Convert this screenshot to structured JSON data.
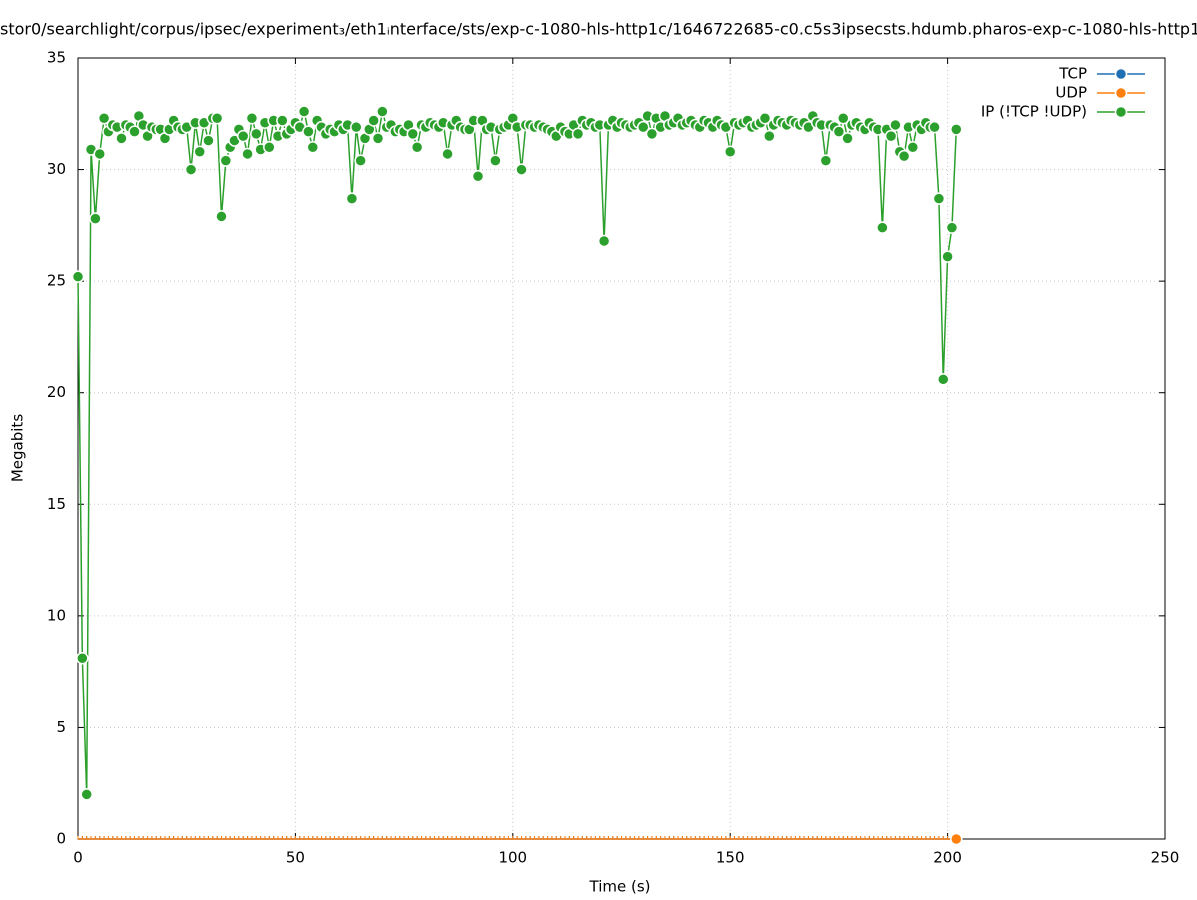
{
  "chart_data": {
    "type": "line",
    "title": "stor0/searchlight/corpus/ipsec/experiment₃/eth1ᵢnterface/sts/exp-c-1080-hls-http1c/1646722685-c0.c5s3ipsecsts.hdumb.pharos-exp-c-1080-hls-http1",
    "x_label": "Time (s)",
    "y_label": "Megabits",
    "xlim": [
      0,
      250
    ],
    "xticks": [
      0,
      50,
      100,
      150,
      200,
      250
    ],
    "ylim": [
      0,
      35
    ],
    "yticks": [
      0,
      5,
      10,
      15,
      20,
      25,
      30,
      35
    ],
    "grid": true,
    "legend": "top-right",
    "x": [
      0,
      1,
      2,
      3,
      4,
      5,
      6,
      7,
      8,
      9,
      10,
      11,
      12,
      13,
      14,
      15,
      16,
      17,
      18,
      19,
      20,
      21,
      22,
      23,
      24,
      25,
      26,
      27,
      28,
      29,
      30,
      31,
      32,
      33,
      34,
      35,
      36,
      37,
      38,
      39,
      40,
      41,
      42,
      43,
      44,
      45,
      46,
      47,
      48,
      49,
      50,
      51,
      52,
      53,
      54,
      55,
      56,
      57,
      58,
      59,
      60,
      61,
      62,
      63,
      64,
      65,
      66,
      67,
      68,
      69,
      70,
      71,
      72,
      73,
      74,
      75,
      76,
      77,
      78,
      79,
      80,
      81,
      82,
      83,
      84,
      85,
      86,
      87,
      88,
      89,
      90,
      91,
      92,
      93,
      94,
      95,
      96,
      97,
      98,
      99,
      100,
      101,
      102,
      103,
      104,
      105,
      106,
      107,
      108,
      109,
      110,
      111,
      112,
      113,
      114,
      115,
      116,
      117,
      118,
      119,
      120,
      121,
      122,
      123,
      124,
      125,
      126,
      127,
      128,
      129,
      130,
      131,
      132,
      133,
      134,
      135,
      136,
      137,
      138,
      139,
      140,
      141,
      142,
      143,
      144,
      145,
      146,
      147,
      148,
      149,
      150,
      151,
      152,
      153,
      154,
      155,
      156,
      157,
      158,
      159,
      160,
      161,
      162,
      163,
      164,
      165,
      166,
      167,
      168,
      169,
      170,
      171,
      172,
      173,
      174,
      175,
      176,
      177,
      178,
      179,
      180,
      181,
      182,
      183,
      184,
      185,
      186,
      187,
      188,
      189,
      190,
      191,
      192,
      193,
      194,
      195,
      196,
      197,
      198,
      199,
      200,
      201,
      202
    ],
    "series": [
      {
        "name": "TCP",
        "color": "#1f6fb4",
        "values": [
          0,
          0,
          0,
          0,
          0,
          0,
          0,
          0,
          0,
          0,
          0,
          0,
          0,
          0,
          0,
          0,
          0,
          0,
          0,
          0,
          0,
          0,
          0,
          0,
          0,
          0,
          0,
          0,
          0,
          0,
          0,
          0,
          0,
          0,
          0,
          0,
          0,
          0,
          0,
          0,
          0,
          0,
          0,
          0,
          0,
          0,
          0,
          0,
          0,
          0,
          0,
          0,
          0,
          0,
          0,
          0,
          0,
          0,
          0,
          0,
          0,
          0,
          0,
          0,
          0,
          0,
          0,
          0,
          0,
          0,
          0,
          0,
          0,
          0,
          0,
          0,
          0,
          0,
          0,
          0,
          0,
          0,
          0,
          0,
          0,
          0,
          0,
          0,
          0,
          0,
          0,
          0,
          0,
          0,
          0,
          0,
          0,
          0,
          0,
          0,
          0,
          0,
          0,
          0,
          0,
          0,
          0,
          0,
          0,
          0,
          0,
          0,
          0,
          0,
          0,
          0,
          0,
          0,
          0,
          0,
          0,
          0,
          0,
          0,
          0,
          0,
          0,
          0,
          0,
          0,
          0,
          0,
          0,
          0,
          0,
          0,
          0,
          0,
          0,
          0,
          0,
          0,
          0,
          0,
          0,
          0,
          0,
          0,
          0,
          0,
          0,
          0,
          0,
          0,
          0,
          0,
          0,
          0,
          0,
          0,
          0,
          0,
          0,
          0,
          0,
          0,
          0,
          0,
          0,
          0,
          0,
          0,
          0,
          0,
          0,
          0,
          0,
          0,
          0,
          0,
          0,
          0,
          0,
          0,
          0,
          0,
          0,
          0,
          0,
          0,
          0,
          0,
          0,
          0,
          0,
          0,
          0,
          0,
          0,
          0,
          0,
          0,
          0
        ]
      },
      {
        "name": "UDP",
        "color": "#ff7f0e",
        "values": [
          0,
          0,
          0,
          0,
          0,
          0,
          0,
          0,
          0,
          0,
          0,
          0,
          0,
          0,
          0,
          0,
          0,
          0,
          0,
          0,
          0,
          0,
          0,
          0,
          0,
          0,
          0,
          0,
          0,
          0,
          0,
          0,
          0,
          0,
          0,
          0,
          0,
          0,
          0,
          0,
          0,
          0,
          0,
          0,
          0,
          0,
          0,
          0,
          0,
          0,
          0,
          0,
          0,
          0,
          0,
          0,
          0,
          0,
          0,
          0,
          0,
          0,
          0,
          0,
          0,
          0,
          0,
          0,
          0,
          0,
          0,
          0,
          0,
          0,
          0,
          0,
          0,
          0,
          0,
          0,
          0,
          0,
          0,
          0,
          0,
          0,
          0,
          0,
          0,
          0,
          0,
          0,
          0,
          0,
          0,
          0,
          0,
          0,
          0,
          0,
          0,
          0,
          0,
          0,
          0,
          0,
          0,
          0,
          0,
          0,
          0,
          0,
          0,
          0,
          0,
          0,
          0,
          0,
          0,
          0,
          0,
          0,
          0,
          0,
          0,
          0,
          0,
          0,
          0,
          0,
          0,
          0,
          0,
          0,
          0,
          0,
          0,
          0,
          0,
          0,
          0,
          0,
          0,
          0,
          0,
          0,
          0,
          0,
          0,
          0,
          0,
          0,
          0,
          0,
          0,
          0,
          0,
          0,
          0,
          0,
          0,
          0,
          0,
          0,
          0,
          0,
          0,
          0,
          0,
          0,
          0,
          0,
          0,
          0,
          0,
          0,
          0,
          0,
          0,
          0,
          0,
          0,
          0,
          0,
          0,
          0,
          0,
          0,
          0,
          0,
          0,
          0,
          0,
          0,
          0,
          0,
          0,
          0,
          0,
          0,
          0,
          0,
          0
        ]
      },
      {
        "name": "IP (!TCP  !UDP)",
        "color": "#2ca02c",
        "values": [
          25.2,
          8.1,
          2.0,
          30.9,
          27.8,
          30.7,
          32.3,
          31.7,
          32.0,
          31.9,
          31.4,
          32.0,
          31.9,
          31.7,
          32.4,
          32.0,
          31.5,
          31.9,
          31.8,
          31.8,
          31.4,
          31.8,
          32.2,
          31.9,
          31.8,
          31.9,
          30.0,
          32.1,
          30.8,
          32.1,
          31.3,
          32.3,
          32.3,
          27.9,
          30.4,
          31.0,
          31.3,
          31.8,
          31.5,
          30.7,
          32.3,
          31.6,
          30.9,
          32.1,
          31.0,
          32.2,
          31.5,
          32.2,
          31.6,
          31.8,
          32.1,
          31.9,
          32.6,
          31.7,
          31.0,
          32.2,
          31.9,
          31.6,
          31.8,
          31.7,
          32.0,
          31.8,
          32.0,
          28.7,
          31.9,
          30.4,
          31.4,
          31.8,
          32.2,
          31.4,
          32.6,
          31.9,
          32.0,
          31.7,
          31.8,
          31.7,
          32.0,
          31.6,
          31.0,
          32.0,
          31.9,
          32.1,
          32.0,
          31.9,
          32.1,
          30.7,
          32.0,
          32.2,
          31.9,
          31.8,
          31.8,
          32.2,
          29.7,
          32.2,
          31.8,
          31.9,
          30.4,
          31.8,
          31.9,
          32.0,
          32.3,
          31.9,
          30.0,
          32.0,
          32.0,
          31.9,
          32.0,
          31.9,
          31.8,
          31.7,
          31.5,
          31.9,
          31.7,
          31.6,
          32.0,
          31.6,
          32.2,
          32.0,
          32.1,
          31.9,
          32.0,
          26.8,
          32.0,
          32.2,
          31.9,
          32.1,
          32.0,
          31.9,
          32.0,
          32.1,
          31.9,
          32.4,
          31.6,
          32.3,
          31.9,
          32.4,
          32.0,
          32.1,
          32.3,
          32.0,
          32.1,
          32.2,
          32.0,
          31.9,
          32.2,
          32.1,
          31.9,
          32.2,
          32.0,
          31.9,
          30.8,
          32.1,
          32.0,
          32.1,
          32.2,
          31.9,
          32.0,
          32.1,
          32.3,
          31.5,
          32.0,
          32.2,
          32.1,
          32.0,
          32.2,
          32.1,
          32.0,
          32.1,
          31.9,
          32.4,
          32.1,
          32.0,
          30.4,
          32.0,
          31.9,
          31.7,
          32.3,
          31.4,
          32.0,
          32.1,
          31.9,
          31.8,
          32.1,
          31.9,
          31.8,
          27.4,
          31.8,
          31.5,
          32.0,
          30.8,
          30.6,
          31.9,
          31.0,
          32.0,
          31.8,
          32.1,
          31.9,
          31.9,
          28.7,
          20.6,
          26.1,
          27.4,
          31.8
        ]
      }
    ]
  }
}
